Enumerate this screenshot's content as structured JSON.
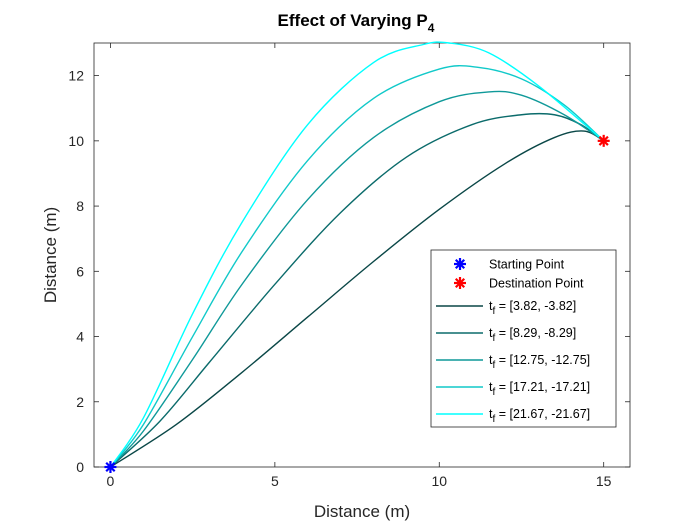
{
  "chart_data": {
    "type": "line",
    "title": "Effect of Varying P",
    "title_subscript": "4",
    "xlabel": "Distance (m)",
    "ylabel": "Distance (m)",
    "xlim": [
      -0.5,
      15.8
    ],
    "ylim": [
      0,
      13
    ],
    "xticks": [
      0,
      5,
      10,
      15
    ],
    "yticks": [
      0,
      2,
      4,
      6,
      8,
      10,
      12
    ],
    "grid": false,
    "legend_position": "lower-right",
    "markers": [
      {
        "name": "Starting Point",
        "x": 0,
        "y": 0,
        "color": "#0000ff"
      },
      {
        "name": "Destination Point",
        "x": 15,
        "y": 10,
        "color": "#ff0000"
      }
    ],
    "series": [
      {
        "label_main": "t",
        "label_sub": "f",
        "label_rest": " = [3.82, -3.82]",
        "color": "#0a4747",
        "points": [
          [
            0,
            0
          ],
          [
            2,
            1.3
          ],
          [
            4,
            2.9
          ],
          [
            6,
            4.6
          ],
          [
            8,
            6.3
          ],
          [
            10,
            7.9
          ],
          [
            12,
            9.3
          ],
          [
            13.5,
            10.1
          ],
          [
            14.4,
            10.3
          ],
          [
            15,
            10
          ]
        ]
      },
      {
        "label_main": "t",
        "label_sub": "f",
        "label_rest": " = [8.29, -8.29]",
        "color": "#0b6b6b",
        "points": [
          [
            0,
            0
          ],
          [
            1.5,
            1.4
          ],
          [
            3,
            3.2
          ],
          [
            5,
            5.6
          ],
          [
            7,
            7.8
          ],
          [
            9,
            9.5
          ],
          [
            11,
            10.5
          ],
          [
            12.5,
            10.8
          ],
          [
            13.5,
            10.8
          ],
          [
            14.3,
            10.5
          ],
          [
            15,
            10
          ]
        ]
      },
      {
        "label_main": "t",
        "label_sub": "f",
        "label_rest": " = [12.75, -12.75]",
        "color": "#0f9999",
        "points": [
          [
            0,
            0
          ],
          [
            1,
            1.1
          ],
          [
            2.5,
            3.3
          ],
          [
            4,
            5.6
          ],
          [
            6,
            8.2
          ],
          [
            8,
            10.1
          ],
          [
            10,
            11.2
          ],
          [
            11.5,
            11.5
          ],
          [
            12.5,
            11.4
          ],
          [
            13.8,
            10.8
          ],
          [
            15,
            10
          ]
        ]
      },
      {
        "label_main": "t",
        "label_sub": "f",
        "label_rest": " = [17.21, -17.21]",
        "color": "#11c9c9",
        "points": [
          [
            0,
            0
          ],
          [
            1,
            1.3
          ],
          [
            2.5,
            4.0
          ],
          [
            4,
            6.6
          ],
          [
            6,
            9.4
          ],
          [
            8,
            11.3
          ],
          [
            10,
            12.2
          ],
          [
            11.2,
            12.25
          ],
          [
            12.5,
            11.9
          ],
          [
            13.8,
            11.1
          ],
          [
            15,
            10
          ]
        ]
      },
      {
        "label_main": "t",
        "label_sub": "f",
        "label_rest": " = [21.67, -21.67]",
        "color": "#00ffff",
        "points": [
          [
            0,
            0
          ],
          [
            1,
            1.5
          ],
          [
            2.5,
            4.7
          ],
          [
            4,
            7.5
          ],
          [
            6,
            10.5
          ],
          [
            8,
            12.4
          ],
          [
            9.5,
            12.95
          ],
          [
            10.3,
            13.0
          ],
          [
            11.5,
            12.7
          ],
          [
            13,
            11.7
          ],
          [
            15,
            10
          ]
        ]
      }
    ],
    "legend_items": [
      {
        "text": "Starting Point"
      },
      {
        "text": "Destination Point"
      }
    ]
  }
}
